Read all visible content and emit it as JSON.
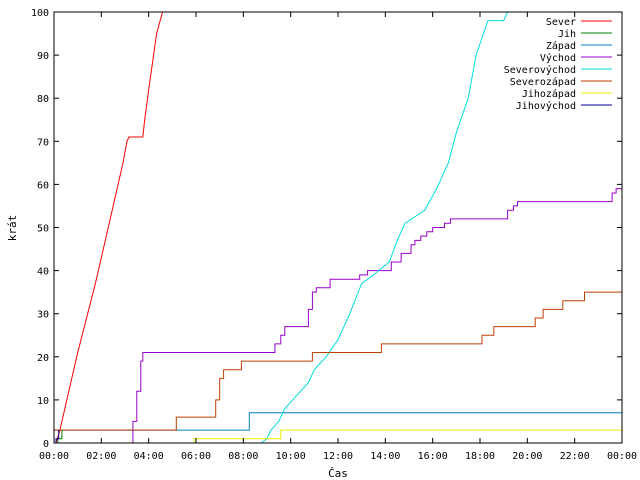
{
  "chart_data": {
    "type": "line",
    "title": "",
    "xlabel": "Čas",
    "ylabel": "krát",
    "xlim": [
      "00:00",
      "24:00"
    ],
    "ylim": [
      0,
      100
    ],
    "grid": false,
    "legend_position": "top-right",
    "x_tick_labels": [
      "00:00",
      "02:00",
      "04:00",
      "06:00",
      "08:00",
      "10:00",
      "12:00",
      "14:00",
      "16:00",
      "18:00",
      "20:00",
      "22:00",
      "00:00"
    ],
    "y_tick_labels": [
      "0",
      "10",
      "20",
      "30",
      "40",
      "50",
      "60",
      "70",
      "80",
      "90",
      "100"
    ],
    "series": [
      {
        "name": "Sever",
        "color": "#ff0000",
        "step": false,
        "points": [
          [
            "00:05",
            0
          ],
          [
            "00:15",
            3
          ],
          [
            "00:20",
            5
          ],
          [
            "01:00",
            21
          ],
          [
            "01:45",
            37
          ],
          [
            "02:30",
            55
          ],
          [
            "02:55",
            65
          ],
          [
            "03:05",
            70
          ],
          [
            "03:10",
            71
          ],
          [
            "03:45",
            71
          ],
          [
            "03:50",
            75
          ],
          [
            "04:00",
            82
          ],
          [
            "04:20",
            95
          ],
          [
            "04:35",
            100
          ]
        ]
      },
      {
        "name": "Jih",
        "color": "#008000",
        "step": true,
        "points": [
          [
            "00:10",
            0
          ],
          [
            "00:10",
            1
          ],
          [
            "00:20",
            1
          ],
          [
            "00:20",
            3
          ]
        ]
      },
      {
        "name": "Západ",
        "color": "#0080c0",
        "step": true,
        "points": [
          [
            "00:00",
            3
          ],
          [
            "08:15",
            3
          ],
          [
            "08:15",
            7
          ],
          [
            "24:00",
            7
          ]
        ]
      },
      {
        "name": "Východ",
        "color": "#9900cc",
        "step": true,
        "points": [
          [
            "03:10",
            0
          ],
          [
            "03:20",
            5
          ],
          [
            "03:30",
            12
          ],
          [
            "03:40",
            19
          ],
          [
            "03:45",
            21
          ],
          [
            "09:15",
            21
          ],
          [
            "09:20",
            23
          ],
          [
            "09:35",
            25
          ],
          [
            "09:45",
            27
          ],
          [
            "10:40",
            27
          ],
          [
            "10:45",
            31
          ],
          [
            "10:55",
            35
          ],
          [
            "11:05",
            36
          ],
          [
            "11:35",
            36
          ],
          [
            "11:40",
            38
          ],
          [
            "12:50",
            38
          ],
          [
            "12:55",
            39
          ],
          [
            "13:15",
            40
          ],
          [
            "14:05",
            40
          ],
          [
            "14:15",
            42
          ],
          [
            "14:35",
            42
          ],
          [
            "14:40",
            44
          ],
          [
            "15:00",
            44
          ],
          [
            "15:05",
            46
          ],
          [
            "15:15",
            47
          ],
          [
            "15:30",
            48
          ],
          [
            "15:45",
            49
          ],
          [
            "16:00",
            50
          ],
          [
            "16:30",
            51
          ],
          [
            "16:45",
            52
          ],
          [
            "19:00",
            52
          ],
          [
            "19:10",
            54
          ],
          [
            "19:25",
            55
          ],
          [
            "19:35",
            56
          ],
          [
            "23:30",
            56
          ],
          [
            "23:35",
            58
          ],
          [
            "23:45",
            59
          ],
          [
            "24:00",
            61
          ]
        ]
      },
      {
        "name": "Severovýchod",
        "color": "#00dddd",
        "step": false,
        "points": [
          [
            "08:45",
            0
          ],
          [
            "09:00",
            1
          ],
          [
            "09:10",
            3
          ],
          [
            "09:30",
            5
          ],
          [
            "09:45",
            8
          ],
          [
            "10:15",
            11
          ],
          [
            "10:45",
            14
          ],
          [
            "11:00",
            17
          ],
          [
            "11:30",
            20
          ],
          [
            "12:00",
            24
          ],
          [
            "12:30",
            30
          ],
          [
            "13:00",
            37
          ],
          [
            "13:30",
            39
          ],
          [
            "14:10",
            42
          ],
          [
            "14:30",
            47
          ],
          [
            "14:50",
            51
          ],
          [
            "15:40",
            54
          ],
          [
            "16:10",
            59
          ],
          [
            "16:40",
            65
          ],
          [
            "17:00",
            72
          ],
          [
            "17:30",
            80
          ],
          [
            "17:50",
            90
          ],
          [
            "18:20",
            98
          ],
          [
            "19:00",
            98
          ],
          [
            "19:10",
            100
          ]
        ]
      },
      {
        "name": "Severozápad",
        "color": "#c04000",
        "step": true,
        "points": [
          [
            "00:00",
            3
          ],
          [
            "05:10",
            3
          ],
          [
            "05:10",
            6
          ],
          [
            "06:45",
            6
          ],
          [
            "06:50",
            10
          ],
          [
            "07:00",
            15
          ],
          [
            "07:10",
            17
          ],
          [
            "07:50",
            17
          ],
          [
            "07:55",
            19
          ],
          [
            "10:50",
            19
          ],
          [
            "10:55",
            21
          ],
          [
            "13:45",
            21
          ],
          [
            "13:50",
            23
          ],
          [
            "18:00",
            23
          ],
          [
            "18:05",
            25
          ],
          [
            "18:30",
            25
          ],
          [
            "18:35",
            27
          ],
          [
            "20:15",
            27
          ],
          [
            "20:20",
            29
          ],
          [
            "20:35",
            29
          ],
          [
            "20:40",
            31
          ],
          [
            "21:25",
            31
          ],
          [
            "21:30",
            33
          ],
          [
            "22:20",
            33
          ],
          [
            "22:25",
            35
          ],
          [
            "24:00",
            35
          ]
        ]
      },
      {
        "name": "Jihozápad",
        "color": "#eeee00",
        "step": true,
        "points": [
          [
            "05:50",
            0
          ],
          [
            "05:55",
            1
          ],
          [
            "09:30",
            1
          ],
          [
            "09:35",
            3
          ],
          [
            "24:00",
            3
          ]
        ]
      },
      {
        "name": "Jihovýchod",
        "color": "#000099",
        "step": true,
        "points": [
          [
            "00:05",
            0
          ],
          [
            "00:05",
            1
          ],
          [
            "00:12",
            1
          ],
          [
            "00:12",
            3
          ]
        ]
      }
    ]
  }
}
